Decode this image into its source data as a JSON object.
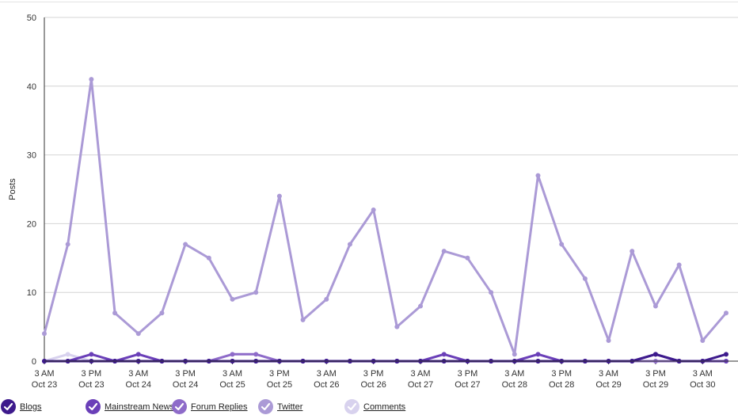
{
  "chart_data": {
    "type": "line",
    "title": "",
    "ylabel": "Posts",
    "xlabel": "",
    "ylim": [
      0,
      50
    ],
    "yticks": [
      0,
      10,
      20,
      30,
      40,
      50
    ],
    "grid": true,
    "legend_position": "bottom",
    "x_tick_labels": [
      [
        "3 AM",
        "Oct 23"
      ],
      [
        "3 PM",
        "Oct 23"
      ],
      [
        "3 AM",
        "Oct 24"
      ],
      [
        "3 PM",
        "Oct 24"
      ],
      [
        "3 AM",
        "Oct 25"
      ],
      [
        "3 PM",
        "Oct 25"
      ],
      [
        "3 AM",
        "Oct 26"
      ],
      [
        "3 PM",
        "Oct 26"
      ],
      [
        "3 AM",
        "Oct 27"
      ],
      [
        "3 PM",
        "Oct 27"
      ],
      [
        "3 AM",
        "Oct 28"
      ],
      [
        "3 PM",
        "Oct 28"
      ],
      [
        "3 AM",
        "Oct 29"
      ],
      [
        "3 PM",
        "Oct 29"
      ],
      [
        "3 AM",
        "Oct 30"
      ]
    ],
    "series": [
      {
        "name": "Twitter",
        "color": "#ab9ad6",
        "values": [
          4,
          17,
          41,
          7,
          4,
          7,
          17,
          15,
          9,
          10,
          24,
          6,
          9,
          17,
          22,
          5,
          8,
          16,
          15,
          10,
          1,
          27,
          17,
          12,
          3,
          16,
          8,
          14,
          3,
          7
        ]
      },
      {
        "name": "Comments",
        "color": "#d8d2ee",
        "values": [
          0,
          1,
          0,
          0,
          0,
          0,
          0,
          0,
          0,
          0,
          0,
          0,
          0,
          0,
          0,
          0,
          0,
          0,
          0,
          0,
          0,
          0,
          0,
          0,
          0,
          0,
          0,
          0,
          0,
          0
        ]
      },
      {
        "name": "Forum Replies",
        "color": "#8e6bc9",
        "values": [
          0,
          0,
          0,
          0,
          0,
          0,
          0,
          0,
          1,
          1,
          0,
          0,
          0,
          0,
          0,
          0,
          0,
          0,
          0,
          0,
          0,
          0,
          0,
          0,
          0,
          0,
          0,
          0,
          0,
          0
        ]
      },
      {
        "name": "Mainstream News",
        "color": "#6a3fb8",
        "values": [
          0,
          0,
          1,
          0,
          1,
          0,
          0,
          0,
          0,
          0,
          0,
          0,
          0,
          0,
          0,
          0,
          0,
          1,
          0,
          0,
          0,
          1,
          0,
          0,
          0,
          0,
          1,
          0,
          0,
          0
        ]
      },
      {
        "name": "Blogs",
        "color": "#3d1a8c",
        "values": [
          0,
          0,
          0,
          0,
          0,
          0,
          0,
          0,
          0,
          0,
          0,
          0,
          0,
          0,
          0,
          0,
          0,
          0,
          0,
          0,
          0,
          0,
          0,
          0,
          0,
          0,
          1,
          0,
          0,
          1
        ]
      }
    ]
  },
  "legend": [
    {
      "label": "Blogs",
      "color": "#3d1a8c"
    },
    {
      "label": "Mainstream News",
      "color": "#6a3fb8"
    },
    {
      "label": "Forum Replies",
      "color": "#8e6bc9"
    },
    {
      "label": "Twitter",
      "color": "#ab9ad6"
    },
    {
      "label": "Comments",
      "color": "#d8d2ee"
    }
  ]
}
